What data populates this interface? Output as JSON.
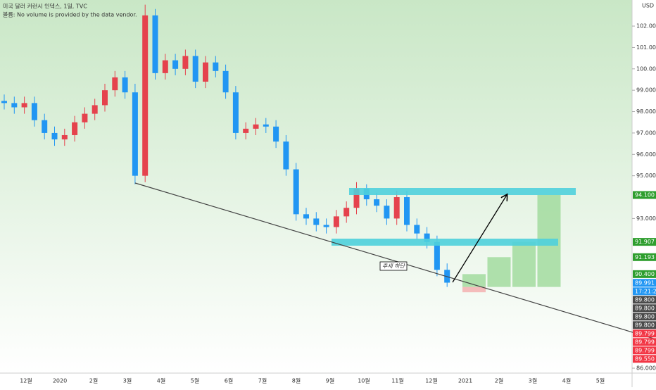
{
  "header": {
    "title": "미국 달러 커런시 인덱스, 1일, TVC",
    "volume_note": "볼륨: No volume is provided by the data vendor.",
    "currency": "USD"
  },
  "chart_data": {
    "type": "candlestick",
    "up_color": "#e5424d",
    "down_color": "#2196f3",
    "open": [
      98.5,
      98.4,
      98.2,
      98.4,
      97.6,
      97.0,
      96.7,
      96.9,
      97.5,
      97.9,
      98.3,
      99.0,
      99.6,
      98.9,
      95.0,
      102.5,
      99.8,
      100.4,
      100.0,
      100.6,
      99.4,
      100.3,
      99.9,
      98.9,
      97.0,
      97.2,
      97.4,
      97.3,
      96.6,
      95.3,
      93.2,
      93.0,
      92.7,
      92.6,
      93.1,
      93.5,
      94.4,
      93.9,
      93.6,
      93.0,
      94.0,
      92.7,
      92.3,
      91.9,
      90.6
    ],
    "high": [
      98.8,
      98.7,
      98.7,
      98.7,
      97.9,
      97.3,
      97.2,
      97.8,
      98.2,
      98.6,
      99.3,
      99.9,
      99.9,
      99.3,
      103.0,
      102.8,
      100.7,
      100.7,
      100.9,
      100.9,
      100.6,
      100.6,
      100.2,
      99.2,
      97.5,
      97.7,
      97.7,
      97.6,
      96.9,
      95.6,
      93.5,
      93.3,
      93.0,
      93.4,
      93.8,
      94.7,
      94.6,
      94.2,
      93.9,
      94.3,
      94.3,
      93.0,
      92.6,
      92.2,
      90.9
    ],
    "low": [
      98.1,
      97.9,
      97.9,
      97.3,
      96.7,
      96.4,
      96.4,
      96.6,
      97.2,
      97.6,
      98.0,
      98.7,
      98.6,
      94.6,
      94.7,
      99.5,
      99.5,
      99.7,
      99.7,
      99.1,
      99.1,
      99.6,
      98.6,
      96.7,
      96.7,
      96.9,
      97.0,
      96.3,
      95.0,
      92.9,
      92.7,
      92.4,
      92.3,
      92.3,
      92.8,
      93.2,
      93.6,
      93.3,
      92.7,
      92.7,
      92.4,
      92.0,
      91.6,
      90.3,
      89.8
    ],
    "close": [
      98.4,
      98.2,
      98.4,
      97.6,
      97.0,
      96.7,
      96.9,
      97.5,
      97.9,
      98.3,
      99.0,
      99.6,
      98.9,
      95.0,
      102.5,
      99.8,
      100.4,
      100.0,
      100.6,
      99.4,
      100.3,
      99.9,
      98.9,
      97.0,
      97.2,
      97.4,
      97.3,
      96.6,
      95.3,
      93.2,
      93.0,
      92.7,
      92.6,
      93.1,
      93.5,
      94.4,
      93.9,
      93.6,
      93.0,
      94.0,
      92.7,
      92.3,
      91.9,
      90.6,
      90.0
    ],
    "ylim": [
      85.77,
      103.22
    ],
    "yticks": [
      {
        "value": 102,
        "label": "102.000"
      },
      {
        "value": 101,
        "label": "101.000"
      },
      {
        "value": 100,
        "label": "100.000"
      },
      {
        "value": 99,
        "label": "99.000"
      },
      {
        "value": 98,
        "label": "98.000"
      },
      {
        "value": 97,
        "label": "97.000"
      },
      {
        "value": 96,
        "label": "96.000"
      },
      {
        "value": 95,
        "label": "95.000"
      },
      {
        "value": 93,
        "label": "93.000"
      },
      {
        "value": 86,
        "label": "86.000"
      }
    ],
    "x_labels": [
      "12월",
      "2020",
      "2월",
      "3월",
      "4월",
      "5월",
      "6월",
      "7월",
      "8월",
      "9월",
      "10월",
      "11월",
      "12월",
      "2021",
      "2월",
      "3월",
      "4월",
      "5월"
    ],
    "annotation": "추세 하단",
    "price_labels": [
      {
        "value": 94.1,
        "label": "94.100",
        "color": "#2e9e2e"
      },
      {
        "value": 91.907,
        "label": "91.907",
        "color": "#2e9e2e"
      },
      {
        "value": 91.193,
        "label": "91.193",
        "color": "#2e9e2e"
      },
      {
        "value": 90.4,
        "label": "90.400",
        "color": "#2e9e2e"
      },
      {
        "value": 89.991,
        "label": "89.991",
        "color": "#2196f3"
      },
      {
        "label": "17:21:22",
        "color": "#2196f3"
      },
      {
        "value": 89.8,
        "label": "89.800",
        "color": "#4a4a4a"
      },
      {
        "value": 89.8,
        "label": "89.800",
        "color": "#4a4a4a"
      },
      {
        "value": 89.8,
        "label": "89.800",
        "color": "#4a4a4a"
      },
      {
        "value": 89.8,
        "label": "89.800",
        "color": "#4a4a4a"
      },
      {
        "value": 89.799,
        "label": "89.799",
        "color": "#f23645"
      },
      {
        "value": 89.799,
        "label": "89.799",
        "color": "#f23645"
      },
      {
        "value": 89.799,
        "label": "89.799",
        "color": "#f23645"
      },
      {
        "value": 89.55,
        "label": "89.550",
        "color": "#f23645"
      }
    ]
  }
}
